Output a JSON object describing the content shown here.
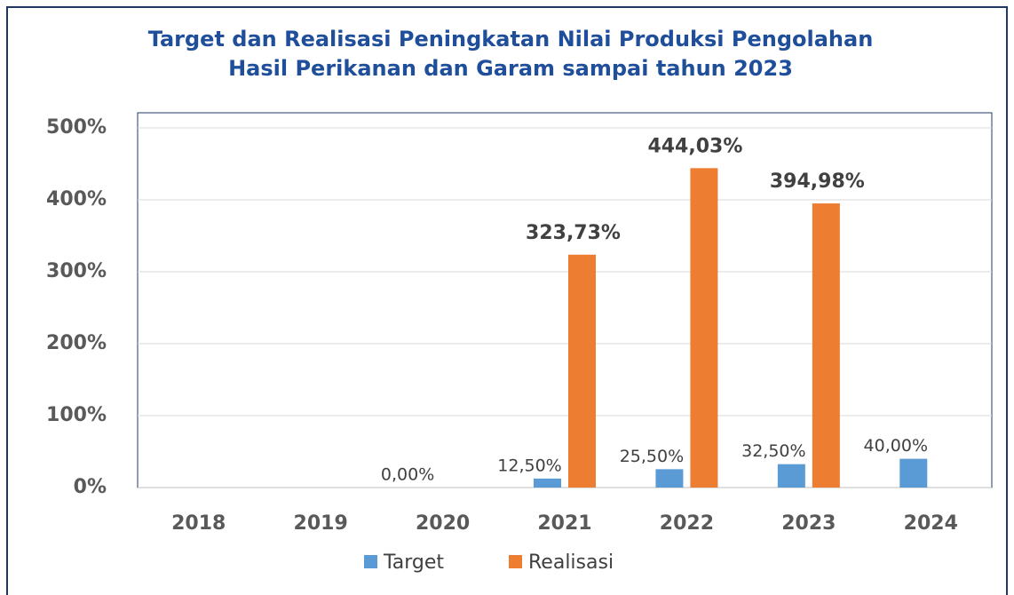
{
  "chart_data": {
    "type": "bar",
    "title": [
      "Target dan Realisasi Peningkatan Nilai Produksi Pengolahan",
      "Hasil Perikanan dan Garam  sampai tahun 2023"
    ],
    "categories": [
      "2018",
      "2019",
      "2020",
      "2021",
      "2022",
      "2023",
      "2024"
    ],
    "series": [
      {
        "name": "Target",
        "color": "#5b9bd5",
        "values": [
          null,
          null,
          0,
          12.5,
          25.5,
          32.5,
          40
        ],
        "value_labels": [
          null,
          null,
          "0,00%",
          "12,50%",
          "25,50%",
          "32,50%",
          "40,00%"
        ]
      },
      {
        "name": "Realisasi",
        "color": "#ed7d31",
        "values": [
          null,
          null,
          null,
          323.73,
          444.03,
          394.98,
          null
        ],
        "value_labels": [
          null,
          null,
          null,
          "323,73%",
          "444,03%",
          "394,98%",
          null
        ]
      }
    ],
    "ylim": [
      0,
      500
    ],
    "yticks": [
      {
        "value": 0,
        "label": "0%"
      },
      {
        "value": 100,
        "label": "100%"
      },
      {
        "value": 200,
        "label": "200%"
      },
      {
        "value": 300,
        "label": "300%"
      },
      {
        "value": 400,
        "label": "400%"
      },
      {
        "value": 500,
        "label": "500%"
      }
    ],
    "grid": true
  }
}
